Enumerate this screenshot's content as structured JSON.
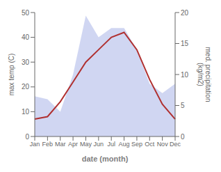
{
  "chart_data": {
    "type": "line",
    "xlabel": "date (month)",
    "ylabel": "max temp (C)",
    "y2label": "med. precipitation\n(kg/m2)",
    "categories": [
      "Jan",
      "Feb",
      "Mar",
      "Apr",
      "May",
      "Jun",
      "Jul",
      "Aug",
      "Sep",
      "Oct",
      "Nov",
      "Dec"
    ],
    "series": [
      {
        "type": "area",
        "axis": "y2",
        "color": "#aab4e8",
        "values": [
          6.5,
          6.0,
          4.0,
          10.0,
          19.5,
          16.0,
          17.5,
          17.5,
          14.0,
          8.5,
          7.0,
          8.5
        ]
      },
      {
        "type": "line",
        "color": "#b03030",
        "values": [
          7,
          8,
          14,
          22,
          30,
          35,
          40,
          42,
          35,
          23,
          13,
          7
        ]
      }
    ],
    "ylim": [
      0,
      50
    ],
    "yticks": [
      0,
      10,
      20,
      30,
      40,
      50
    ],
    "y2lim": [
      0,
      20
    ],
    "y2ticks": [
      0,
      5,
      10,
      15,
      20
    ],
    "grid": false
  }
}
